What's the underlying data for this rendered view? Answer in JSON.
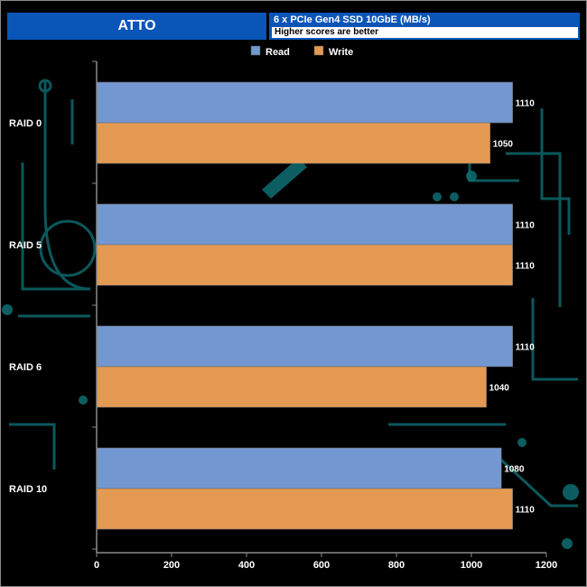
{
  "header": {
    "title": "ATTO",
    "subtitle": "6 x PCIe Gen4 SSD 10GbE (MB/s)",
    "note": "Higher scores are better"
  },
  "colors": {
    "read": "#7398d1",
    "write": "#e49a53",
    "header_bg": "#0a55b8",
    "pattern": "#0e6e73"
  },
  "chart_data": {
    "type": "bar",
    "orientation": "horizontal",
    "categories": [
      "RAID 0",
      "RAID 5",
      "RAID 6",
      "RAID 10"
    ],
    "series": [
      {
        "name": "Read",
        "values": [
          1110,
          1110,
          1110,
          1080
        ]
      },
      {
        "name": "Write",
        "values": [
          1050,
          1110,
          1040,
          1110
        ]
      }
    ],
    "xlim": [
      0,
      1200
    ],
    "xticks": [
      0,
      200,
      400,
      600,
      800,
      1000,
      1200
    ],
    "legend": "top-center",
    "grid": false
  }
}
